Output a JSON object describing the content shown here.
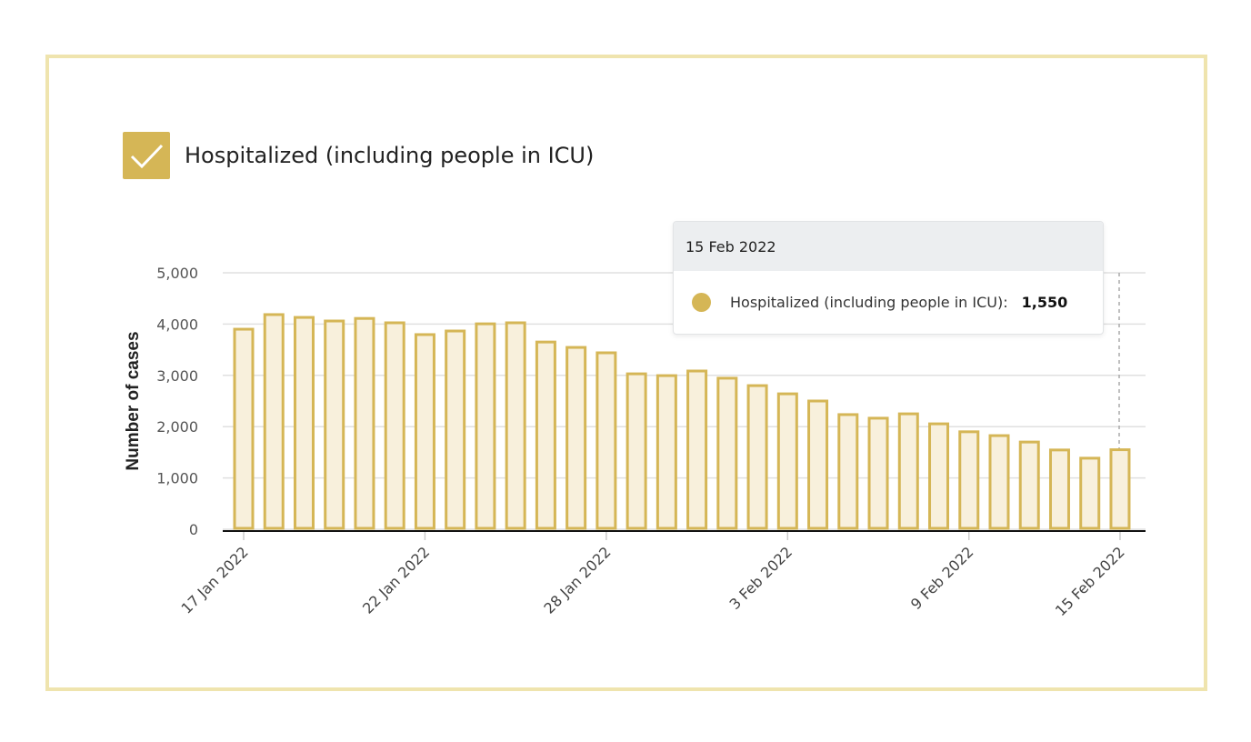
{
  "legend": {
    "label": "Hospitalized (including people in ICU)",
    "checked": true
  },
  "tooltip": {
    "date": "15 Feb 2022",
    "series": "Hospitalized (including people in ICU):",
    "value": "1,550"
  },
  "colors": {
    "bar_stroke": "#d5b656",
    "bar_fill": "#f8f0dc",
    "frame": "#efe4ae"
  },
  "chart_data": {
    "type": "bar",
    "title": "",
    "xlabel": "",
    "ylabel": "Number of cases",
    "ylim": [
      0,
      5000
    ],
    "yticks": [
      0,
      1000,
      2000,
      3000,
      4000,
      5000
    ],
    "ytick_labels": [
      "0",
      "1,000",
      "2,000",
      "3,000",
      "4,000",
      "5,000"
    ],
    "xtick_positions": [
      0,
      6,
      12,
      18,
      24,
      29
    ],
    "xtick_labels": [
      "17 Jan 2022",
      "22 Jan 2022",
      "28 Jan 2022",
      "3 Feb 2022",
      "9 Feb 2022",
      "15 Feb 2022"
    ],
    "grid": true,
    "series": [
      {
        "name": "Hospitalized (including people in ICU)",
        "values": [
          3900,
          4185,
          4130,
          4060,
          4110,
          4025,
          3795,
          3865,
          4005,
          4025,
          3650,
          3545,
          3440,
          3030,
          2995,
          3085,
          2945,
          2800,
          2640,
          2500,
          2235,
          2165,
          2250,
          2055,
          1900,
          1825,
          1700,
          1545,
          1385,
          1550
        ]
      }
    ]
  }
}
